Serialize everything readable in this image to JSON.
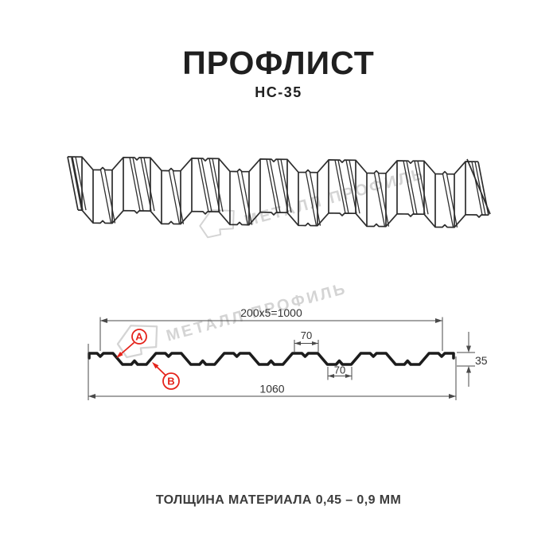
{
  "title": "ПРОФЛИСТ",
  "subtitle": "НС-35",
  "watermark": {
    "text": "МЕТАЛЛ ПРОФИЛЬ"
  },
  "cross_section": {
    "dim_pitch": "200x5=1000",
    "dim_crest_top": "70",
    "dim_valley_bottom": "70",
    "dim_overall_width": "1060",
    "dim_height": "35",
    "marker_a": "A",
    "marker_b": "B"
  },
  "footer": {
    "text": "ТОЛЩИНА МАТЕРИАЛА 0,45 – 0,9 ММ"
  },
  "colors": {
    "ink": "#1f1f1f",
    "profile": "#1c1c1c",
    "drawing": "#2d2d2d",
    "dim": "#4a4a4a",
    "accent_red": "#e5231b",
    "watermark": "#d4d4d4",
    "footer_text": "#3c3c3c"
  }
}
